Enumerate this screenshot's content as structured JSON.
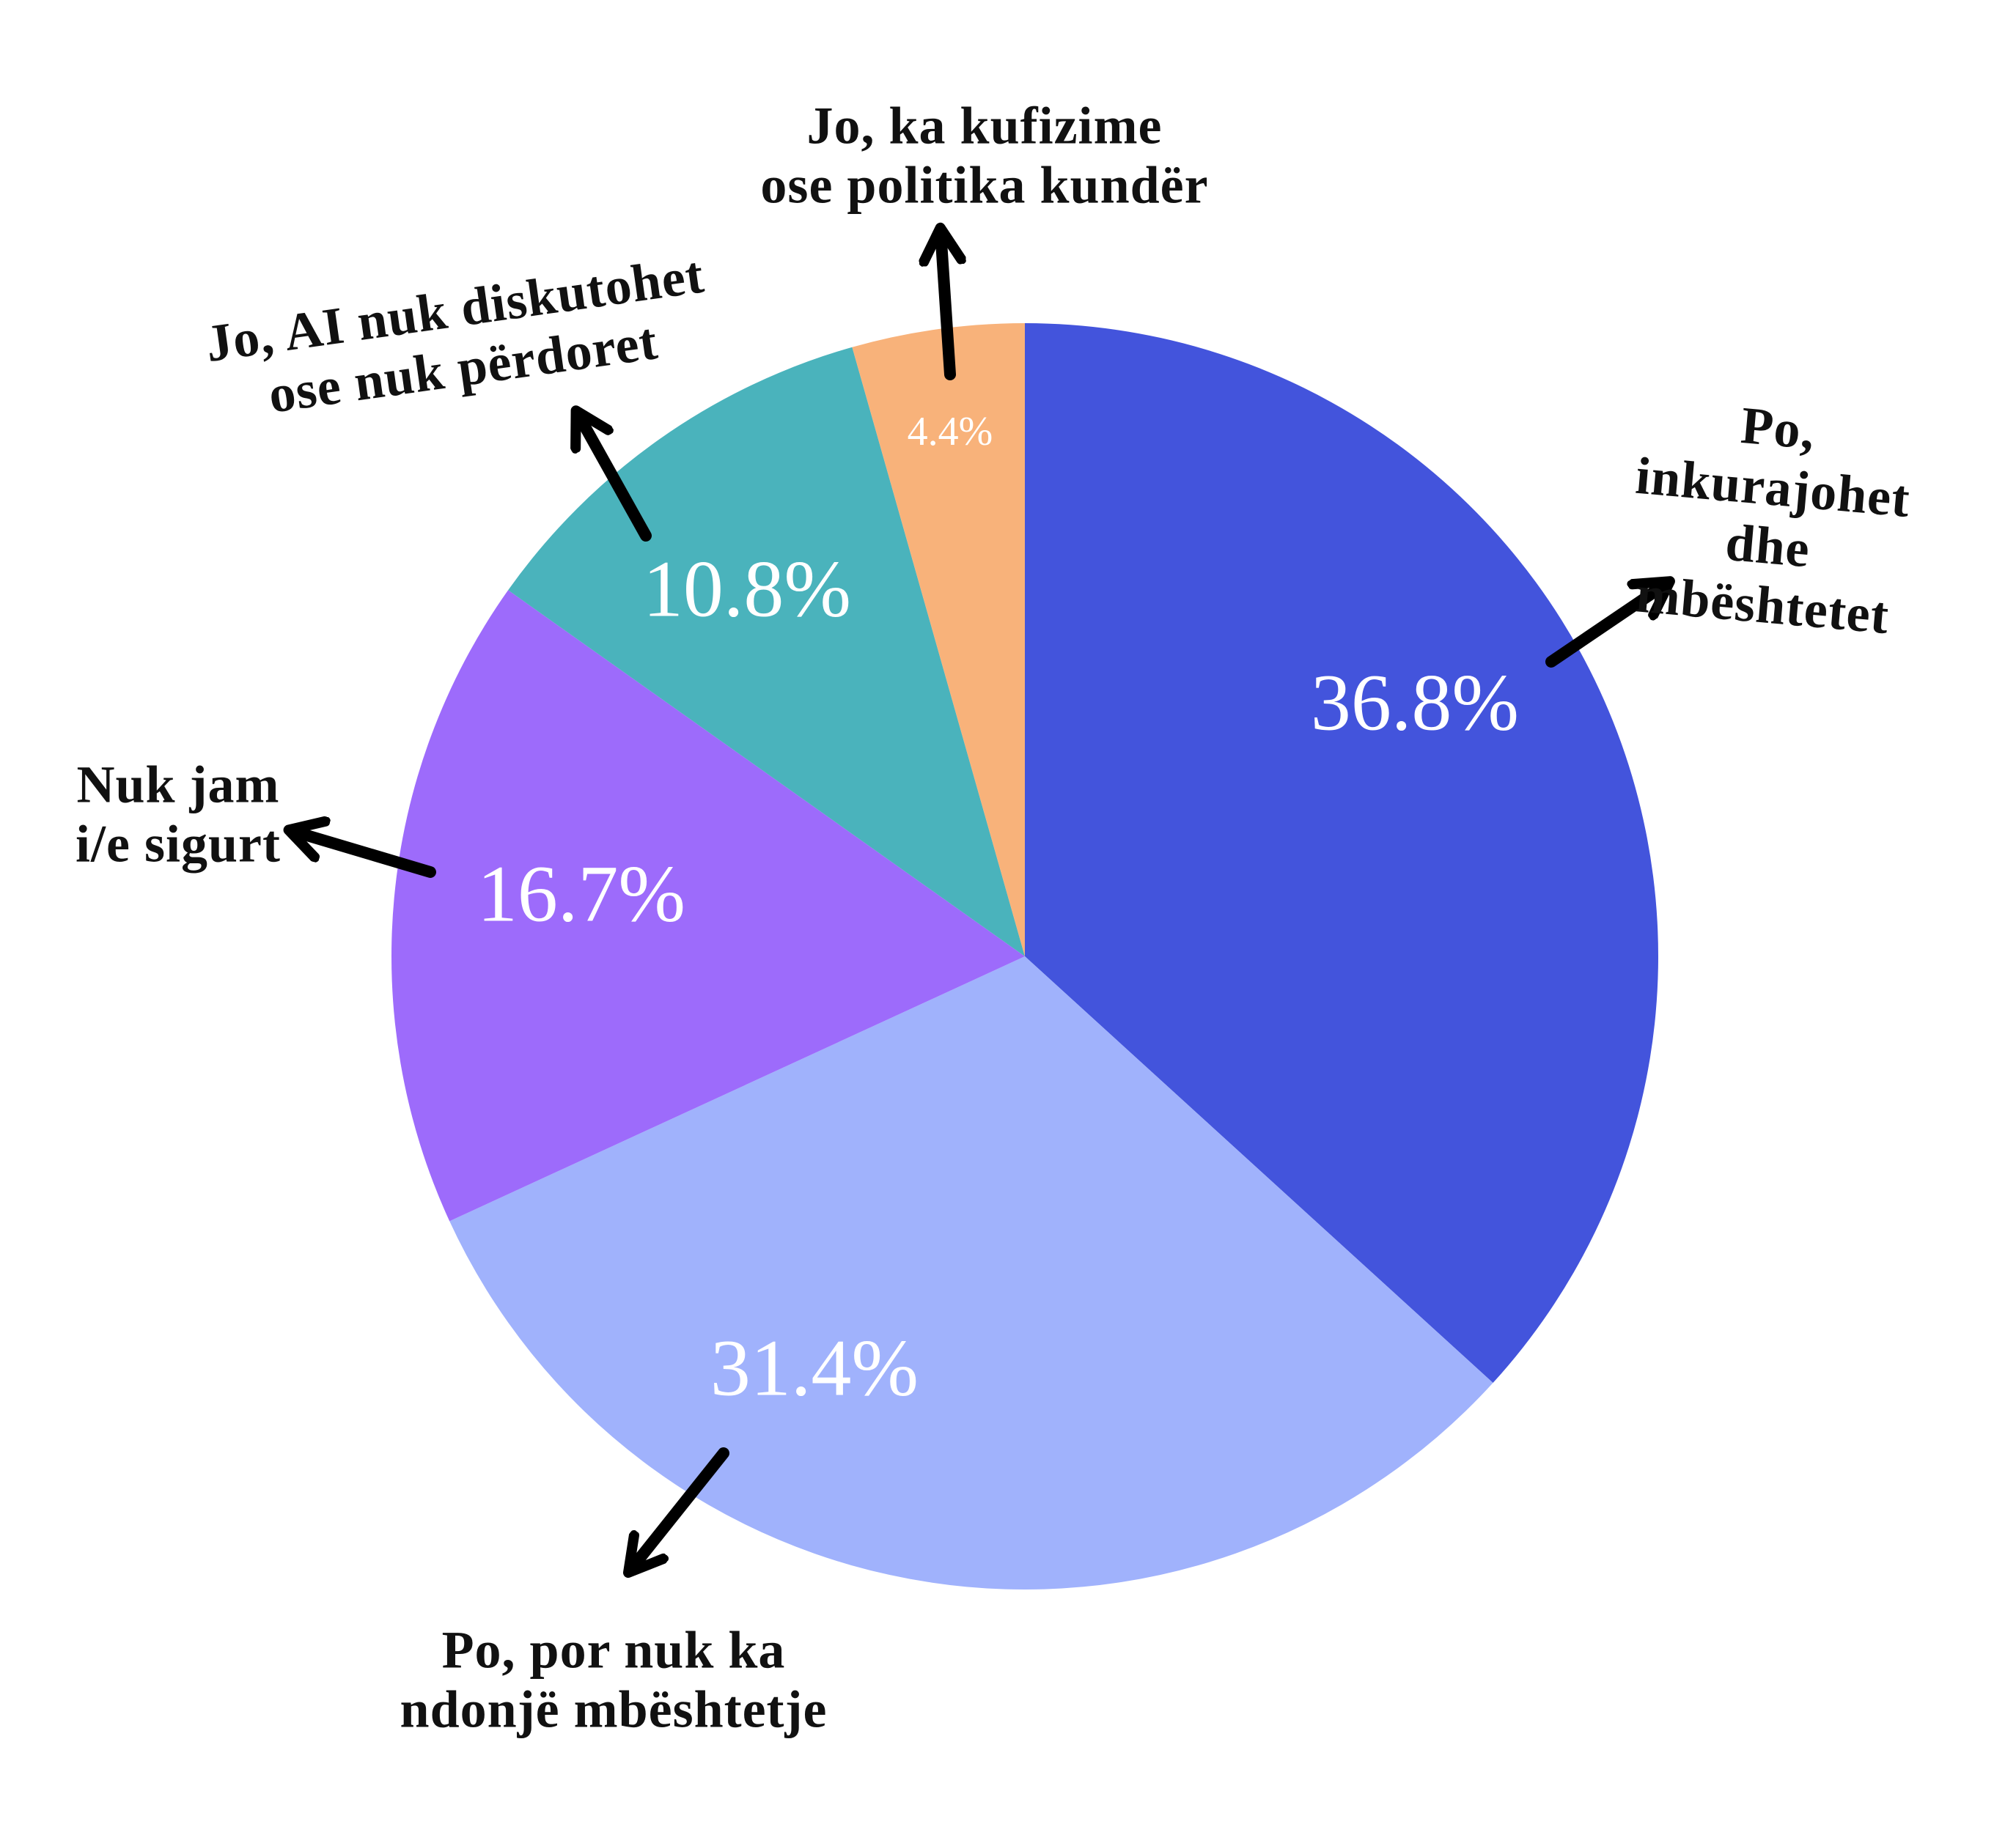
{
  "chart_data": {
    "type": "pie",
    "categories": [
      "Po, inkurajohet\ndhe mbështetet",
      "Po, por nuk ka\nndonjë mbështetje",
      "Nuk jam\ni/e sigurt",
      "Jo, AI nuk diskutohet\nose nuk përdoret",
      "Jo, ka kufizime\nose politika kundër"
    ],
    "values": [
      36.8,
      31.4,
      16.7,
      10.8,
      4.4
    ],
    "value_labels": [
      "36.8%",
      "31.4%",
      "16.7%",
      "10.8%",
      "4.4%"
    ],
    "colors": [
      "#4354dc",
      "#a0b2fc",
      "#9d6bfb",
      "#4ab3bc",
      "#f8b27a"
    ]
  }
}
